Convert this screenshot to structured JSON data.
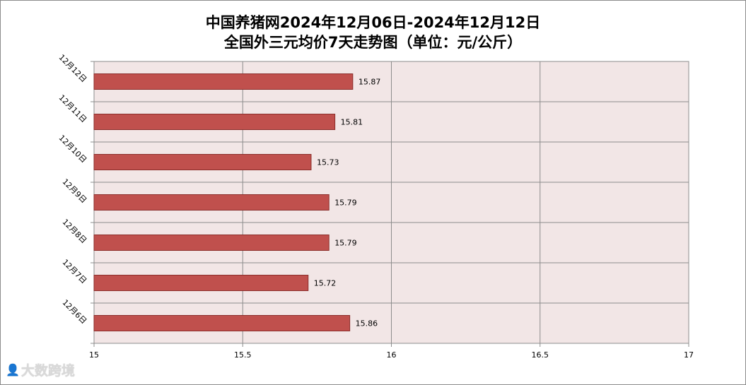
{
  "title_line1": "中国养猪网2024年12月06日-2024年12月12日",
  "title_line2": "全国外三元均价7天走势图（单位：元/公斤）",
  "watermark": {
    "logo_text": "大数跨境"
  },
  "colors": {
    "bar": "#c0504d",
    "bar_border": "#8b2e2b",
    "plot_bg": "#f2e6e6",
    "grid": "#8c8c8c"
  },
  "chart_data": {
    "type": "bar",
    "orientation": "horizontal",
    "title": "中国养猪网2024年12月06日-2024年12月12日 全国外三元均价7天走势图（单位：元/公斤）",
    "categories": [
      "12月12日",
      "12月11日",
      "12月10日",
      "12月9日",
      "12月8日",
      "12月7日",
      "12月6日"
    ],
    "values": [
      15.87,
      15.81,
      15.73,
      15.79,
      15.79,
      15.72,
      15.86
    ],
    "value_labels": [
      "15.87",
      "15.81",
      "15.73",
      "15.79",
      "15.79",
      "15.72",
      "15.86"
    ],
    "xlim": [
      15,
      17
    ],
    "xticks": [
      15,
      15.5,
      16,
      16.5,
      17
    ],
    "xtick_labels": [
      "15",
      "15.5",
      "16",
      "16.5",
      "17"
    ],
    "grid": true,
    "legend": false
  }
}
